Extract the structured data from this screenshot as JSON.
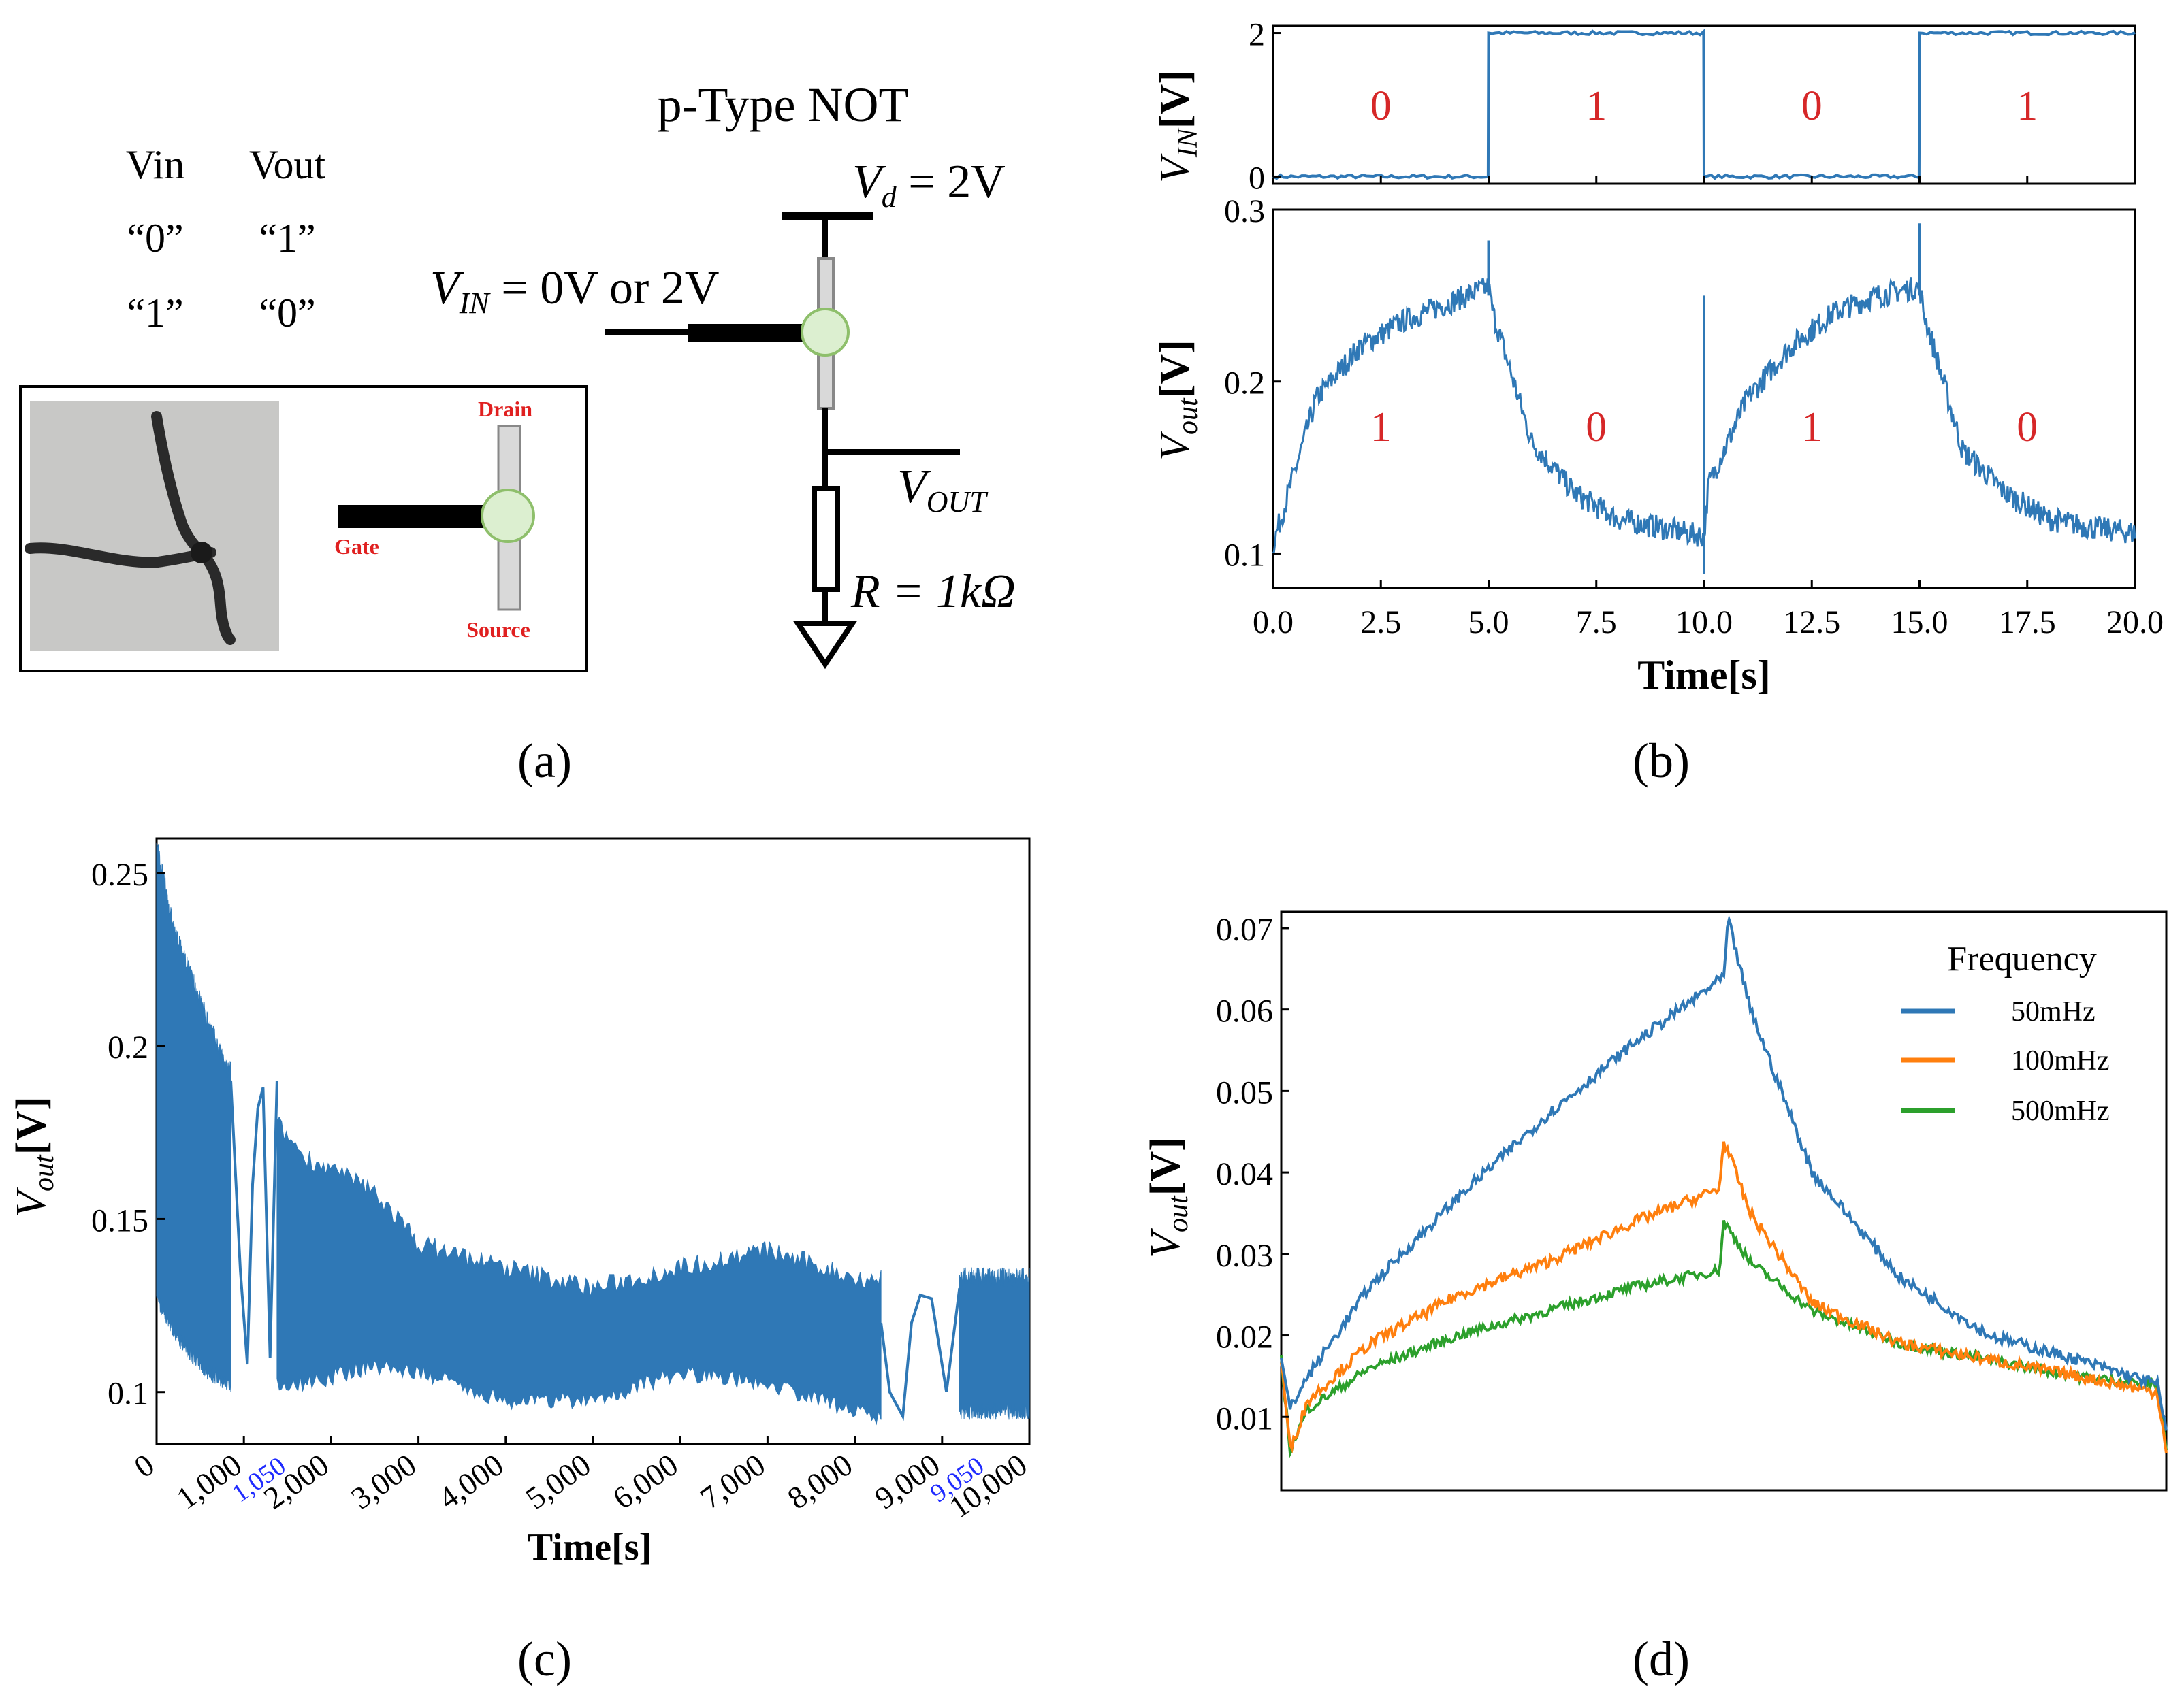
{
  "colors": {
    "blue": "#2f78b6",
    "orange": "#ff7f0e",
    "green": "#2ca02c",
    "red_label": "#d62728",
    "blue_tick": "#1f2bff",
    "node_fill": "#dcefd0",
    "node_stroke": "#8ebf6b",
    "bar_gray": "#d9d9d9"
  },
  "panel_a": {
    "label": "(a)",
    "title": "p-Type NOT",
    "truth_table": {
      "headers": [
        "Vin",
        "Vout"
      ],
      "rows": [
        [
          "“0”",
          "“1”"
        ],
        [
          "“1”",
          "“0”"
        ]
      ]
    },
    "vin_label": "V",
    "vin_sub": "IN",
    "vin_rest": " = 0V or 2V",
    "vd_label": "V",
    "vd_sub": "d",
    "vd_rest": " = 2V",
    "vout_label": "V",
    "vout_sub": "OUT",
    "r_label": "R = 1kΩ",
    "inset": {
      "drain": "Drain",
      "gate": "Gate",
      "source": "Source"
    }
  },
  "chart_data": [
    {
      "id": "b-top",
      "type": "line",
      "title": "",
      "xlabel": "",
      "ylabel": "V_IN[V]",
      "xlim": [
        0,
        20
      ],
      "ylim": [
        -0.1,
        2.1
      ],
      "yticks": [
        0,
        2
      ],
      "series": [
        {
          "name": "V_IN",
          "x": [
            0,
            4.99,
            5.0,
            9.99,
            10.0,
            14.99,
            15.0,
            20.0
          ],
          "y": [
            0,
            0,
            2,
            2,
            0,
            0,
            2,
            2
          ]
        }
      ],
      "annotations": [
        {
          "x": 2.5,
          "text": "0"
        },
        {
          "x": 7.5,
          "text": "1"
        },
        {
          "x": 12.5,
          "text": "0"
        },
        {
          "x": 17.5,
          "text": "1"
        }
      ]
    },
    {
      "id": "b-bottom",
      "type": "line",
      "title": "",
      "xlabel": "Time[s]",
      "ylabel": "V_out[V]",
      "xlim": [
        0,
        20
      ],
      "ylim": [
        0.08,
        0.3
      ],
      "xticks": [
        "0.0",
        "2.5",
        "5.0",
        "7.5",
        "10.0",
        "12.5",
        "15.0",
        "17.5",
        "20.0"
      ],
      "yticks": [
        "0.1",
        "0.2",
        "0.3"
      ],
      "series": [
        {
          "name": "V_out",
          "x": [
            0,
            1,
            2,
            3,
            4,
            5,
            5.1,
            6,
            7,
            8,
            9,
            10,
            10.1,
            11,
            12,
            13,
            14,
            15,
            15.1,
            16,
            17,
            18,
            19,
            20
          ],
          "y": [
            0.105,
            0.19,
            0.22,
            0.235,
            0.245,
            0.255,
            0.24,
            0.165,
            0.135,
            0.12,
            0.115,
            0.11,
            0.14,
            0.19,
            0.22,
            0.24,
            0.25,
            0.255,
            0.24,
            0.16,
            0.135,
            0.12,
            0.115,
            0.112
          ]
        }
      ],
      "annotations": [
        {
          "x": 2.5,
          "text": "1"
        },
        {
          "x": 7.5,
          "text": "0"
        },
        {
          "x": 12.5,
          "text": "1"
        },
        {
          "x": 17.5,
          "text": "0"
        }
      ]
    },
    {
      "id": "c",
      "type": "line",
      "title": "",
      "xlabel": "Time[s]",
      "ylabel": "V_out[V]",
      "xlim": [
        0,
        10000
      ],
      "ylim": [
        0.085,
        0.26
      ],
      "xticks": [
        "0",
        "1,000",
        "2,000",
        "3,000",
        "4,000",
        "5,000",
        "6,000",
        "7,000",
        "8,000",
        "9,000",
        "10,000"
      ],
      "xticks_extra": [
        "1,050",
        "9,050"
      ],
      "yticks": [
        "0.1",
        "0.15",
        "0.2",
        "0.25"
      ],
      "envelope_upper": {
        "x": [
          0,
          200,
          500,
          800,
          850,
          1700,
          2500,
          3000,
          4000,
          5000,
          6000,
          7000,
          8000,
          8300
        ],
        "y": [
          0.255,
          0.23,
          0.21,
          0.19,
          0.19,
          0.165,
          0.155,
          0.14,
          0.133,
          0.127,
          0.133,
          0.138,
          0.13,
          0.13
        ]
      },
      "envelope_lower": {
        "x": [
          0,
          200,
          500,
          800,
          850,
          1700,
          2500,
          3000,
          4000,
          5000,
          6000,
          7000,
          8000,
          8300
        ],
        "y": [
          0.13,
          0.12,
          0.11,
          0.105,
          0.105,
          0.105,
          0.11,
          0.108,
          0.1,
          0.1,
          0.108,
          0.105,
          0.097,
          0.095
        ]
      },
      "segment2_upper": {
        "x": [
          9200,
          10000
        ],
        "y": [
          0.13,
          0.13
        ]
      },
      "segment2_lower": {
        "x": [
          9200,
          10000
        ],
        "y": [
          0.097,
          0.097
        ]
      },
      "series": [
        {
          "name": "gap1",
          "x": [
            850,
            960,
            1040,
            1100,
            1160,
            1220,
            1300,
            1380
          ],
          "y": [
            0.19,
            0.135,
            0.108,
            0.16,
            0.182,
            0.188,
            0.11,
            0.19
          ]
        },
        {
          "name": "gap2",
          "x": [
            8300,
            8400,
            8550,
            8650,
            8750,
            8880,
            9050,
            9200
          ],
          "y": [
            0.12,
            0.1,
            0.093,
            0.12,
            0.128,
            0.127,
            0.1,
            0.13
          ]
        }
      ]
    },
    {
      "id": "d",
      "type": "line",
      "title": "",
      "xlabel": "",
      "ylabel": "V_out[V]",
      "xlim": [
        0,
        10
      ],
      "ylim": [
        0.001,
        0.072
      ],
      "yticks": [
        "0.01",
        "0.02",
        "0.03",
        "0.04",
        "0.05",
        "0.06",
        "0.07"
      ],
      "legend_title": "Frequency",
      "legend_position": "top-right",
      "series": [
        {
          "name": "50mHz",
          "x": [
            0,
            0.1,
            0.3,
            1,
            2,
            3,
            4,
            5,
            5.05,
            5.3,
            6,
            7,
            8,
            9,
            9.9,
            10
          ],
          "y": [
            0.017,
            0.011,
            0.015,
            0.026,
            0.037,
            0.047,
            0.056,
            0.064,
            0.071,
            0.06,
            0.04,
            0.027,
            0.02,
            0.017,
            0.014,
            0.008
          ]
        },
        {
          "name": "100mHz",
          "x": [
            0,
            0.1,
            0.3,
            1,
            2,
            3,
            4,
            4.95,
            5.0,
            5.3,
            6,
            7,
            8,
            9,
            9.9,
            10
          ],
          "y": [
            0.017,
            0.006,
            0.012,
            0.019,
            0.025,
            0.029,
            0.034,
            0.038,
            0.044,
            0.035,
            0.024,
            0.019,
            0.017,
            0.015,
            0.013,
            0.006
          ]
        },
        {
          "name": "500mHz",
          "x": [
            0,
            0.1,
            0.3,
            1,
            2,
            3,
            4,
            4.95,
            5.0,
            5.3,
            6,
            7,
            8,
            9,
            9.9,
            10
          ],
          "y": [
            0.017,
            0.006,
            0.011,
            0.016,
            0.02,
            0.023,
            0.026,
            0.028,
            0.034,
            0.029,
            0.023,
            0.019,
            0.017,
            0.015,
            0.014,
            0.006
          ]
        }
      ]
    }
  ],
  "panel_labels": {
    "b": "(b)",
    "c": "(c)",
    "d": "(d)"
  }
}
